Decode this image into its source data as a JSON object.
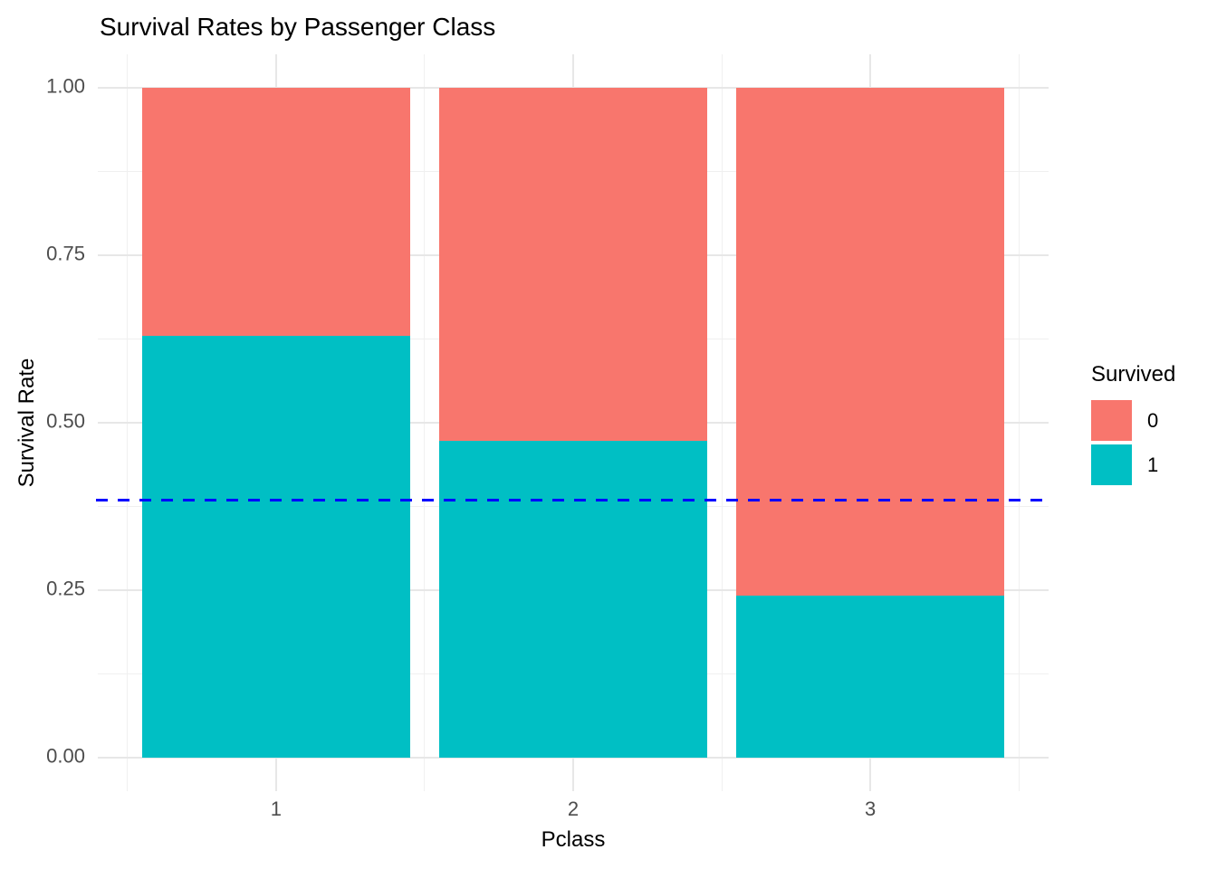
{
  "title": "Survival Rates by Passenger Class",
  "chart_data": {
    "type": "bar",
    "stacked": true,
    "title": "Survival Rates by Passenger Class",
    "xlabel": "Pclass",
    "ylabel": "Survival Rate",
    "categories": [
      "1",
      "2",
      "3"
    ],
    "series": [
      {
        "name": "1",
        "color": "#00BFC4",
        "values": [
          0.6296,
          0.4728,
          0.2424
        ]
      },
      {
        "name": "0",
        "color": "#F8766D",
        "values": [
          0.3704,
          0.5272,
          0.7576
        ]
      }
    ],
    "ylim": [
      0,
      1
    ],
    "y_major_ticks": [
      0,
      0.25,
      0.5,
      0.75,
      1.0
    ],
    "y_tick_labels": [
      "0.00",
      "0.25",
      "0.50",
      "0.75",
      "1.00"
    ],
    "y_minor_ticks": [
      0.125,
      0.375,
      0.625,
      0.875
    ],
    "x_minor_positions": [
      0.5,
      1.5,
      2.5,
      3.5
    ],
    "reference_line": {
      "value": 0.3838,
      "color": "#0000FF",
      "style": "dashed"
    },
    "legend": {
      "title": "Survived",
      "position": "right",
      "entries": [
        {
          "label": "0",
          "color": "#F8766D"
        },
        {
          "label": "1",
          "color": "#00BFC4"
        }
      ]
    },
    "grid": true,
    "background": "#FFFFFF"
  }
}
